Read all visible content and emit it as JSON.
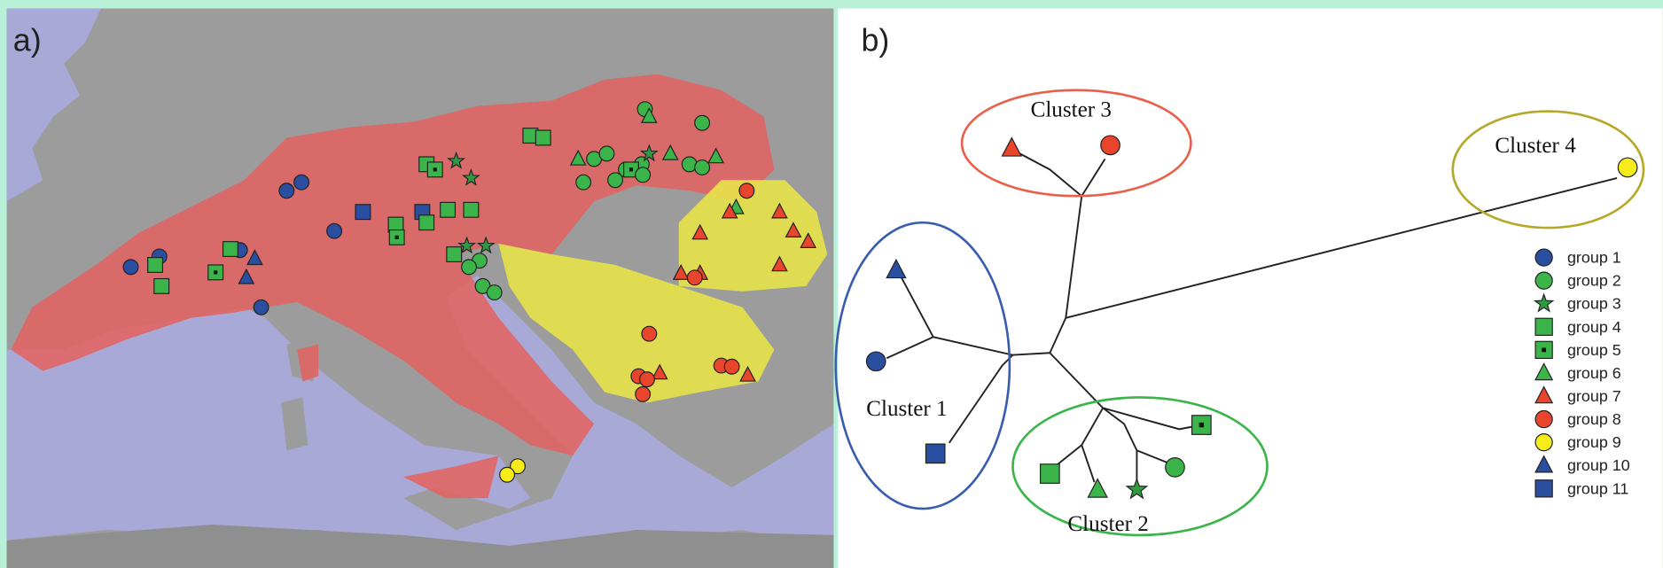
{
  "panel_a": {
    "label": "a)"
  },
  "panel_b": {
    "label": "b)",
    "clusters": [
      "Cluster 1",
      "Cluster 2",
      "Cluster 3",
      "Cluster 4"
    ]
  },
  "legend": [
    "group 1",
    "group 2",
    "group 3",
    "group 4",
    "group 5",
    "group 6",
    "group 7",
    "group 8",
    "group 9",
    "group 10",
    "group 11"
  ]
}
